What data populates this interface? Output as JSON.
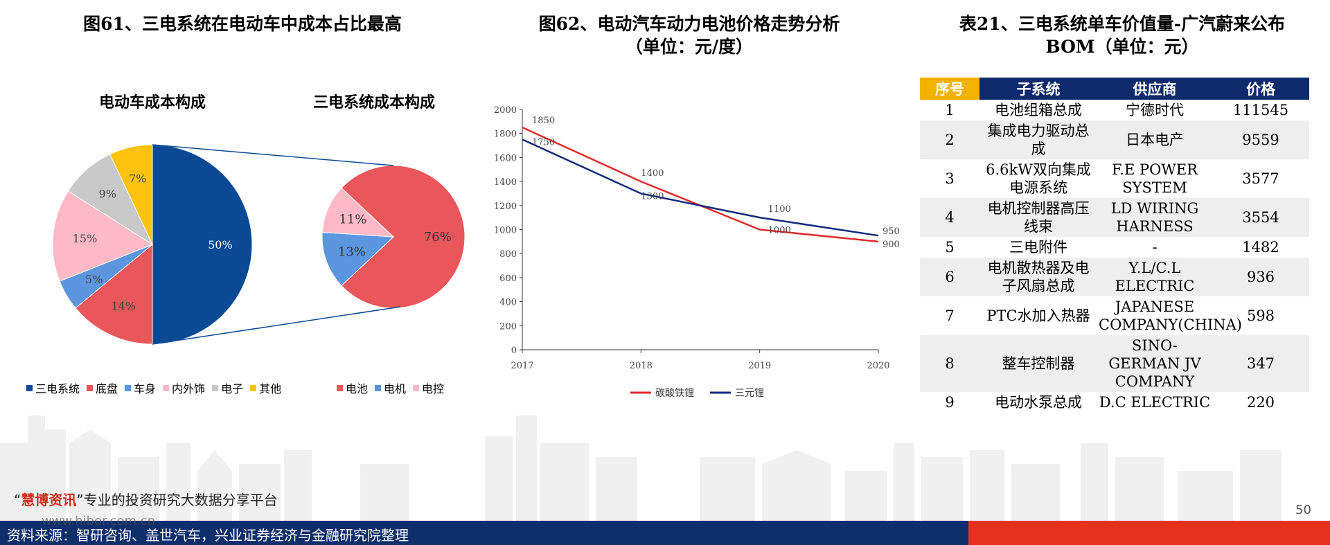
{
  "fig61": {
    "title": "图61、三电系统在电动车中成本占比最高",
    "left_subtitle": "电动车成本构成",
    "right_subtitle": "三电系统成本构成"
  },
  "fig62": {
    "title_line1": "图62、电动汽车动力电池价格走势分析",
    "title_line2": "（单位：元/度）"
  },
  "tab21": {
    "title_line1": "表21、三电系统单车价值量-广汽蔚来公布",
    "title_line2": "BOM（单位：元）",
    "headers": [
      "序号",
      "子系统",
      "供应商",
      "价格"
    ],
    "rows": [
      {
        "no": "1",
        "subsystem": "电池组箱总成",
        "supplier": "宁德时代",
        "price": "111545"
      },
      {
        "no": "2",
        "subsystem": "集成电力驱动总成",
        "supplier": "日本电产",
        "price": "9559"
      },
      {
        "no": "3",
        "subsystem": "6.6kW双向集成电源系统",
        "supplier": "F.E POWER SYSTEM",
        "price": "3577"
      },
      {
        "no": "4",
        "subsystem": "电机控制器高压线束",
        "supplier": "LD WIRING HARNESS",
        "price": "3554"
      },
      {
        "no": "5",
        "subsystem": "三电附件",
        "supplier": "-",
        "price": "1482"
      },
      {
        "no": "6",
        "subsystem": "电机散热器及电子风扇总成",
        "supplier": "Y.L/C.L ELECTRIC",
        "price": "936"
      },
      {
        "no": "7",
        "subsystem": "PTC水加入热器",
        "supplier": "JAPANESE COMPANY(CHINA)",
        "price": "598"
      },
      {
        "no": "8",
        "subsystem": "整车控制器",
        "supplier": "SINO-GERMAN JV COMPANY",
        "price": "347"
      },
      {
        "no": "9",
        "subsystem": "电动水泵总成",
        "supplier": "D.C ELECTRIC",
        "price": "220"
      }
    ]
  },
  "chart_data": [
    {
      "type": "pie",
      "title": "电动车成本构成",
      "labels": [
        "三电系统",
        "底盘",
        "车身",
        "内外饰",
        "电子",
        "其他"
      ],
      "values": [
        50,
        14,
        5,
        15,
        9,
        7
      ],
      "value_labels": [
        "50%",
        "14%",
        "5%",
        "15%",
        "9%",
        "7%"
      ],
      "colors": [
        "#0a4a94",
        "#e9575b",
        "#5b96de",
        "#fdb9c6",
        "#c9c9c9",
        "#fcc20d"
      ],
      "legend_position": "bottom"
    },
    {
      "type": "pie",
      "title": "三电系统成本构成",
      "labels": [
        "电池",
        "电机",
        "电控"
      ],
      "values": [
        76,
        13,
        11
      ],
      "value_labels": [
        "76%",
        "13%",
        "11%"
      ],
      "colors": [
        "#e9575b",
        "#5b96de",
        "#fdb9c6"
      ],
      "legend_position": "bottom"
    },
    {
      "type": "line",
      "x": [
        "2017",
        "2018",
        "2019",
        "2020"
      ],
      "series": [
        {
          "name": "碳酸铁锂",
          "values": [
            1850,
            1400,
            1000,
            900
          ],
          "value_labels": [
            "1850",
            "1400",
            "1000",
            "900"
          ],
          "color": "#e12a2a"
        },
        {
          "name": "三元锂",
          "values": [
            1750,
            1300,
            1100,
            950
          ],
          "value_labels": [
            "1750",
            "1300",
            "1100",
            "950"
          ],
          "color": "#132a7e"
        }
      ],
      "ylim": [
        0,
        2000
      ],
      "yticks": [
        "0",
        "200",
        "400",
        "600",
        "800",
        "1000",
        "1200",
        "1400",
        "1600",
        "1800",
        "2000"
      ],
      "grid": false,
      "legend_position": "bottom"
    }
  ],
  "footer": {
    "source": "资料来源：智研咨询、盖世汽车，兴业证券经济与金融研究院整理",
    "watermark_quote_open": "“",
    "watermark_brand": "慧博资讯",
    "watermark_rest": "”专业的投资研究大数据分享平台",
    "watermark_url": "www.hibor.com.cn",
    "page": "50"
  }
}
